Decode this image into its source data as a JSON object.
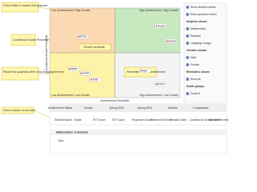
{
  "callouts": [
    "Click a label to expand that quadrant",
    "Conditional Growth Percentile",
    "Resize the quadrants here or by dragging the lines",
    "Click a column to sort data",
    "Growth percentile",
    "Percentile rank for achievement"
  ],
  "chart": {
    "quadrant_labels": [
      "Low Achievement / High Growth",
      "High Achievement / High Growth",
      "Low Achievement / Low Growth",
      "High Achievement / Low Growth"
    ],
    "x_axis_label": "Achievement Percentile",
    "y_axis_label": "Conditional Growth Percentile",
    "xlim": [
      0,
      100
    ],
    "ylim": [
      0,
      100
    ],
    "split": 50,
    "points": [
      {
        "label": "Emily",
        "x": 22,
        "y": 68
      },
      {
        "label": "Jacob",
        "x": 82,
        "y": 80
      },
      {
        "label": "Sasha",
        "x": 90,
        "y": 63
      },
      {
        "label": "Maria",
        "x": 15,
        "y": 32
      },
      {
        "label": "David",
        "x": 24,
        "y": 27
      },
      {
        "label": "Tyler",
        "x": 32,
        "y": 20
      },
      {
        "label": "Kevin",
        "x": 82,
        "y": 15
      },
      {
        "label": "Alex",
        "x": 70,
        "y": 30
      }
    ]
  },
  "controls": [
    {
      "label": "Show student names",
      "checked": true
    },
    {
      "label": "Show quadrant colors",
      "checked": true
    },
    {
      "label": "Subjects shown",
      "checked": null
    },
    {
      "label": "Mathematics",
      "checked": true
    },
    {
      "label": "Reading",
      "checked": true
    },
    {
      "label": "Language Usage",
      "checked": true
    },
    {
      "label": "Genders shown",
      "checked": null
    },
    {
      "label": "Male",
      "checked": true
    },
    {
      "label": "Female",
      "checked": true
    },
    {
      "label": "Ethnicities shown",
      "checked": null
    },
    {
      "label": "Show all",
      "checked": true
    },
    {
      "label": "Grade groups",
      "checked": null
    },
    {
      "label": "Grade 8",
      "checked": true
    }
  ],
  "table": {
    "group_headers": [
      "Achievement Status",
      "Growth",
      "Spring 2013",
      "Spring 2014",
      "Student",
      "Comparative"
    ],
    "columns": [
      "Student Name",
      "Grade",
      "RIT Score",
      "RIT Score",
      "Projected Growth",
      "Observed Growth",
      "Growth Index",
      "Conditional Growth Index",
      "Growth Percentile"
    ],
    "section": "Mathematics: 8 students",
    "rows": [
      [
        "Tyler"
      ]
    ]
  }
}
